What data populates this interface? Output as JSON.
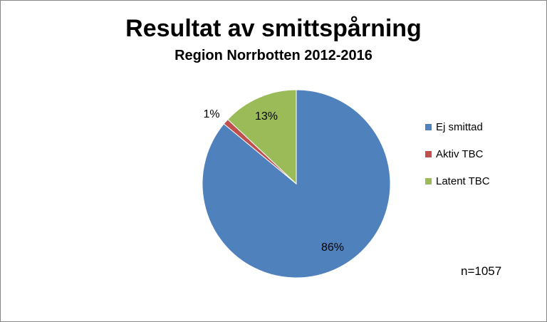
{
  "chart_data": {
    "type": "pie",
    "title": "Resultat av smittspårning",
    "subtitle": "Region Norrbotten 2012-2016",
    "categories": [
      "Ej smittad",
      "Aktiv TBC",
      "Latent TBC"
    ],
    "values": [
      86,
      1,
      13
    ],
    "labels": [
      "86%",
      "1%",
      "13%"
    ],
    "colors": [
      "#4f81bd",
      "#c0504d",
      "#9bbb59"
    ],
    "legend_position": "right",
    "note": "n=1057"
  }
}
